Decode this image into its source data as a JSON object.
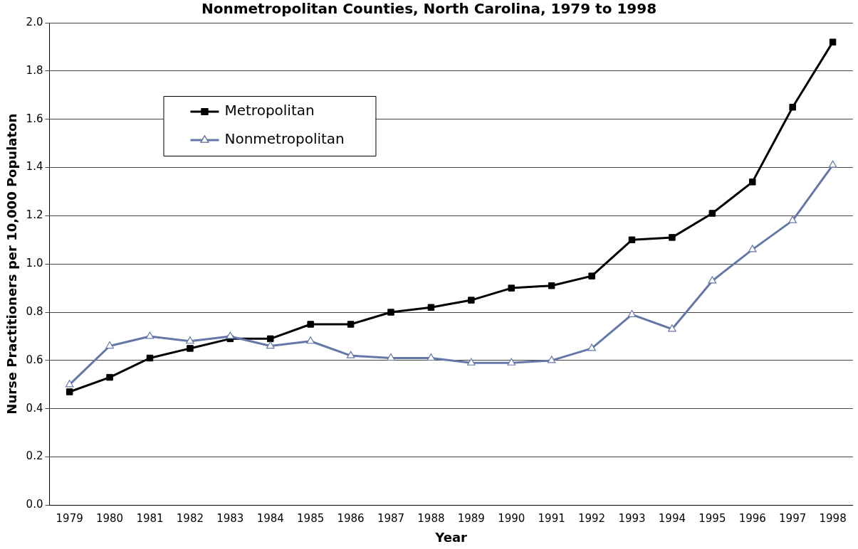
{
  "chart_data": {
    "type": "line",
    "title": "Nonmetropolitan Counties, North Carolina, 1979 to 1998",
    "xlabel": "Year",
    "ylabel": "Nurse Practitioners per 10,000 Populaton",
    "categories": [
      "1979",
      "1980",
      "1981",
      "1982",
      "1983",
      "1984",
      "1985",
      "1986",
      "1987",
      "1988",
      "1989",
      "1990",
      "1991",
      "1992",
      "1993",
      "1994",
      "1995",
      "1996",
      "1997",
      "1998"
    ],
    "series": [
      {
        "name": "Metropolitan",
        "color": "#000000",
        "marker": "square",
        "values": [
          0.47,
          0.53,
          0.61,
          0.65,
          0.69,
          0.69,
          0.75,
          0.75,
          0.8,
          0.82,
          0.85,
          0.9,
          0.91,
          0.95,
          1.1,
          1.11,
          1.21,
          1.34,
          1.65,
          1.92
        ]
      },
      {
        "name": "Nonmetropolitan",
        "color": "#6477a8",
        "marker": "triangle",
        "values": [
          0.5,
          0.66,
          0.7,
          0.68,
          0.7,
          0.66,
          0.68,
          0.62,
          0.61,
          0.61,
          0.59,
          0.59,
          0.6,
          0.65,
          0.79,
          0.73,
          0.93,
          1.06,
          1.18,
          1.41
        ]
      }
    ],
    "ylim": [
      0,
      2
    ],
    "yticks": [
      {
        "value": 0,
        "label": "0.0"
      },
      {
        "value": 0.2,
        "label": "0.2"
      },
      {
        "value": 0.4,
        "label": "0.4"
      },
      {
        "value": 0.6,
        "label": "0.6"
      },
      {
        "value": 0.8,
        "label": "0.8"
      },
      {
        "value": 1,
        "label": "1.0"
      },
      {
        "value": 1.2,
        "label": "1.2"
      },
      {
        "value": 1.4,
        "label": "1.4"
      },
      {
        "value": 1.6,
        "label": "1.6"
      },
      {
        "value": 1.8,
        "label": "1.8"
      },
      {
        "value": 2,
        "label": "2.0"
      }
    ],
    "grid": "y",
    "legend": "top left"
  }
}
